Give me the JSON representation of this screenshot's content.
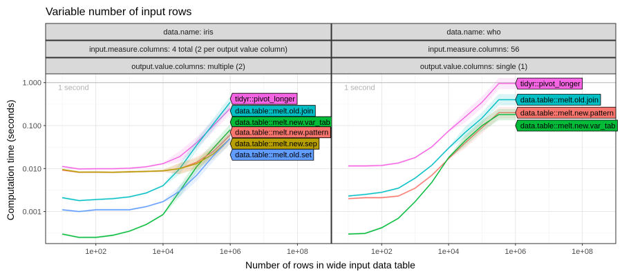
{
  "chart_data": {
    "type": "line",
    "title": "Variable number of input rows",
    "xlabel": "Number of rows in wide input data table",
    "ylabel": "Computation time (seconds)",
    "x_scale": "log10",
    "y_scale": "log10",
    "xlim": [
      3.2,
      1000000000
    ],
    "ylim": [
      0.00018,
      1.6
    ],
    "x_ticks": [
      "1e+02",
      "1e+04",
      "1e+06",
      "1e+08"
    ],
    "x_tick_values": [
      100,
      10000,
      1000000,
      100000000
    ],
    "y_ticks": [
      "0.001",
      "0.010",
      "0.100",
      "1.000"
    ],
    "y_tick_values": [
      0.001,
      0.01,
      0.1,
      1
    ],
    "reference_line": {
      "y": 1,
      "label": "1 second"
    },
    "grid": true,
    "colors": {
      "tidyr::pivot_longer": "#f564e3",
      "data.table::melt.old.join": "#00bfc4",
      "data.table::melt.new.var_tab": "#00ba38",
      "data.table::melt.new.pattern": "#f8766d",
      "data.table::melt.new.sep": "#b79f00",
      "data.table::melt.old.set": "#619cff"
    },
    "panels": [
      {
        "strips": [
          "data.name: iris",
          "input.measure.columns: 4 total (2 per output value column)",
          "output.value.columns: multiple (2)"
        ],
        "series": [
          {
            "name": "tidyr::pivot_longer",
            "x": [
              10,
              31.6,
              100,
              316,
              1000,
              3162,
              10000,
              31623,
              100000,
              316228,
              1000000
            ],
            "y": [
              0.0112,
              0.0098,
              0.0099,
              0.0099,
              0.0102,
              0.011,
              0.013,
              0.019,
              0.04,
              0.1,
              0.25
            ]
          },
          {
            "name": "data.table::melt.old.join",
            "x": [
              10,
              31.6,
              100,
              316,
              1000,
              3162,
              10000,
              31623,
              100000,
              316228,
              1000000
            ],
            "y": [
              0.0021,
              0.0018,
              0.0019,
              0.002,
              0.0022,
              0.0027,
              0.004,
              0.01,
              0.035,
              0.11,
              0.35
            ]
          },
          {
            "name": "data.table::melt.new.var_tab",
            "x": [
              10,
              31.6,
              100,
              316,
              1000,
              3162,
              10000,
              31623,
              100000,
              316228,
              1000000
            ],
            "y": [
              0.0003,
              0.00025,
              0.00025,
              0.00028,
              0.00035,
              0.0005,
              0.00085,
              0.003,
              0.011,
              0.03,
              0.08
            ]
          },
          {
            "name": "data.table::melt.new.pattern",
            "x": [
              10,
              31.6,
              100,
              316,
              1000,
              3162,
              10000,
              31623,
              100000,
              316228,
              1000000
            ],
            "y": [
              0.0092,
              0.0082,
              0.0083,
              0.0082,
              0.0084,
              0.0086,
              0.0088,
              0.01,
              0.014,
              0.025,
              0.06
            ]
          },
          {
            "name": "data.table::melt.new.sep",
            "x": [
              10,
              31.6,
              100,
              316,
              1000,
              3162,
              10000,
              31623,
              100000,
              316228,
              1000000
            ],
            "y": [
              0.0095,
              0.0083,
              0.0083,
              0.0082,
              0.0084,
              0.0086,
              0.0089,
              0.01,
              0.013,
              0.022,
              0.05
            ]
          },
          {
            "name": "data.table::melt.old.set",
            "x": [
              10,
              31.6,
              100,
              316,
              1000,
              3162,
              10000,
              31623,
              100000,
              316228,
              1000000
            ],
            "y": [
              0.0011,
              0.001,
              0.0011,
              0.0011,
              0.0011,
              0.0013,
              0.0017,
              0.003,
              0.007,
              0.02,
              0.05
            ]
          }
        ]
      },
      {
        "strips": [
          "data.name: who",
          "input.measure.columns: 56",
          "output.value.columns: single (1)"
        ],
        "series": [
          {
            "name": "tidyr::pivot_longer",
            "x": [
              10,
              31.6,
              100,
              316,
              1000,
              3162,
              10000,
              31623,
              100000,
              316228,
              1000000
            ],
            "y": [
              0.0115,
              0.0115,
              0.0118,
              0.0135,
              0.018,
              0.032,
              0.075,
              0.16,
              0.35,
              0.95,
              0.95
            ]
          },
          {
            "name": "data.table::melt.old.join",
            "x": [
              10,
              31.6,
              100,
              316,
              1000,
              3162,
              10000,
              31623,
              100000,
              316228,
              1000000
            ],
            "y": [
              0.0023,
              0.0025,
              0.0028,
              0.0035,
              0.006,
              0.012,
              0.03,
              0.07,
              0.15,
              0.4,
              0.4
            ]
          },
          {
            "name": "data.table::melt.new.pattern",
            "x": [
              10,
              31.6,
              100,
              316,
              1000,
              3162,
              10000,
              31623,
              100000,
              316228,
              1000000
            ],
            "y": [
              0.002,
              0.0021,
              0.0021,
              0.0023,
              0.0035,
              0.007,
              0.017,
              0.04,
              0.09,
              0.2,
              0.2
            ]
          },
          {
            "name": "data.table::melt.new.var_tab",
            "x": [
              10,
              31.6,
              100,
              316,
              1000,
              3162,
              10000,
              31623,
              100000,
              316228,
              1000000
            ],
            "y": [
              0.0003,
              0.00031,
              0.00042,
              0.0007,
              0.0017,
              0.0048,
              0.018,
              0.045,
              0.1,
              0.18,
              0.18
            ]
          }
        ]
      }
    ],
    "end_labels": [
      [
        {
          "name": "tidyr::pivot_longer",
          "x": 1000000,
          "y": 0.42
        },
        {
          "name": "data.table::melt.old.join",
          "x": 1000000,
          "y": 0.22
        },
        {
          "name": "data.table::melt.new.var_tab",
          "x": 1000000,
          "y": 0.12
        },
        {
          "name": "data.table::melt.new.pattern",
          "x": 1000000,
          "y": 0.07
        },
        {
          "name": "data.table::melt.new.sep",
          "x": 1000000,
          "y": 0.038
        },
        {
          "name": "data.table::melt.old.set",
          "x": 1000000,
          "y": 0.021
        }
      ],
      [
        {
          "name": "tidyr::pivot_longer",
          "x": 1000000,
          "y": 0.95
        },
        {
          "name": "data.table::melt.old.join",
          "x": 1000000,
          "y": 0.4
        },
        {
          "name": "data.table::melt.new.pattern",
          "x": 1000000,
          "y": 0.2
        },
        {
          "name": "data.table::melt.new.var_tab",
          "x": 1000000,
          "y": 0.1
        }
      ]
    ]
  }
}
